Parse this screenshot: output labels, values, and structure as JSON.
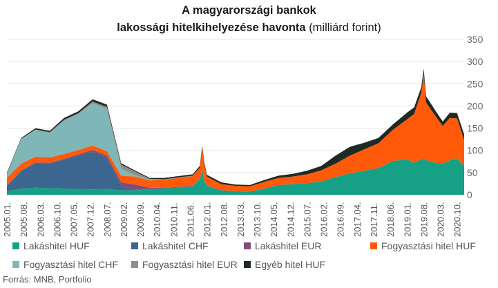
{
  "title_line1": "A magyarországi bankok",
  "title_line2_bold": "lakossági hitelkihelyezése havonta",
  "title_line2_unit": "(milliárd forint)",
  "source": "Forrás: MNB, Portfolio",
  "chart_data": {
    "type": "area",
    "stacked": true,
    "title": "A magyarországi bankok lakossági hitelkihelyezése havonta (milliárd forint)",
    "ylim": [
      0,
      350
    ],
    "y_ticks": [
      0,
      50,
      100,
      150,
      200,
      250,
      300,
      350
    ],
    "y_axis_position": "right",
    "grid": true,
    "legend_position": "bottom",
    "x_tick_labels": [
      "2005.01.",
      "2005.08.",
      "2006.03.",
      "2006.10.",
      "2007.05.",
      "2007.12.",
      "2008.07.",
      "2009.02.",
      "2009.09.",
      "2010.04.",
      "2010.11.",
      "2011.06.",
      "2012.01.",
      "2012.08.",
      "2013.03.",
      "2013.10.",
      "2014.05.",
      "2014.12.",
      "2015.07.",
      "2016.02.",
      "2016.09.",
      "2017.04.",
      "2017.11.",
      "2018.06.",
      "2019.01.",
      "2019.08.",
      "2020.03.",
      "2020.10."
    ],
    "x": [
      "2005.01.",
      "2005.07.",
      "2006.01.",
      "2006.07.",
      "2007.01.",
      "2007.07.",
      "2008.01.",
      "2008.07.",
      "2009.01.",
      "2009.07.",
      "2010.01.",
      "2010.07.",
      "2011.01.",
      "2011.07.",
      "2011.10.",
      "2011.11.",
      "2011.12.",
      "2012.01.",
      "2012.07.",
      "2013.01.",
      "2013.07.",
      "2014.01.",
      "2014.07.",
      "2015.01.",
      "2015.07.",
      "2016.01.",
      "2016.07.",
      "2017.01.",
      "2017.07.",
      "2018.01.",
      "2018.07.",
      "2019.01.",
      "2019.04.",
      "2019.07.",
      "2019.08.",
      "2019.09.",
      "2020.01.",
      "2020.04.",
      "2020.07.",
      "2020.10.",
      "2021.01."
    ],
    "series": [
      {
        "name": "Lakáshitel HUF",
        "color": "#16a085",
        "values": [
          8,
          14,
          16,
          15,
          14,
          13,
          12,
          13,
          10,
          10,
          12,
          14,
          16,
          18,
          35,
          55,
          30,
          20,
          10,
          8,
          7,
          14,
          22,
          24,
          26,
          30,
          40,
          48,
          54,
          60,
          76,
          80,
          72,
          80,
          82,
          78,
          72,
          70,
          78,
          82,
          64
        ]
      },
      {
        "name": "Lakáshitel CHF",
        "color": "#3c6590",
        "values": [
          12,
          40,
          55,
          55,
          65,
          75,
          85,
          70,
          10,
          1,
          1,
          1,
          1,
          1,
          1,
          1,
          1,
          1,
          0,
          0,
          0,
          0,
          0,
          0,
          0,
          0,
          0,
          0,
          0,
          0,
          0,
          0,
          0,
          0,
          0,
          0,
          0,
          0,
          0,
          0,
          0
        ]
      },
      {
        "name": "Lakáshitel EUR",
        "color": "#7d4e77",
        "values": [
          0,
          1,
          2,
          2,
          2,
          3,
          4,
          5,
          8,
          12,
          3,
          1,
          1,
          1,
          0,
          0,
          0,
          0,
          0,
          0,
          0,
          0,
          0,
          0,
          0,
          0,
          0,
          0,
          0,
          0,
          0,
          0,
          0,
          0,
          0,
          0,
          0,
          0,
          0,
          0,
          0
        ]
      },
      {
        "name": "Fogyasztási hitel HUF",
        "color": "#ff5a0a",
        "values": [
          18,
          15,
          13,
          12,
          11,
          10,
          10,
          10,
          15,
          18,
          16,
          18,
          20,
          22,
          25,
          50,
          35,
          20,
          14,
          12,
          12,
          15,
          16,
          17,
          20,
          25,
          30,
          40,
          48,
          56,
          70,
          90,
          110,
          150,
          190,
          130,
          105,
          85,
          95,
          90,
          60
        ]
      },
      {
        "name": "Fogyasztási hitel CHF",
        "color": "#7fb7b8",
        "values": [
          10,
          55,
          60,
          55,
          75,
          80,
          95,
          95,
          15,
          3,
          1,
          0,
          0,
          0,
          0,
          0,
          0,
          0,
          0,
          0,
          0,
          0,
          0,
          0,
          0,
          0,
          0,
          0,
          0,
          0,
          0,
          0,
          0,
          0,
          0,
          0,
          0,
          0,
          0,
          0,
          0
        ]
      },
      {
        "name": "Fogyasztási hitel EUR",
        "color": "#8e8e8e",
        "values": [
          0,
          1,
          1,
          2,
          2,
          3,
          4,
          5,
          10,
          8,
          3,
          1,
          1,
          1,
          0,
          0,
          0,
          0,
          0,
          0,
          0,
          0,
          0,
          0,
          0,
          0,
          0,
          0,
          0,
          0,
          0,
          0,
          0,
          0,
          0,
          0,
          0,
          0,
          0,
          0,
          0
        ]
      },
      {
        "name": "Egyéb hitel HUF",
        "color": "#1f2a24",
        "values": [
          2,
          2,
          3,
          3,
          4,
          4,
          5,
          5,
          3,
          2,
          2,
          3,
          3,
          3,
          4,
          4,
          4,
          4,
          4,
          3,
          3,
          4,
          5,
          6,
          8,
          10,
          18,
          20,
          15,
          12,
          12,
          15,
          15,
          12,
          12,
          14,
          12,
          10,
          12,
          12,
          12
        ]
      }
    ]
  }
}
